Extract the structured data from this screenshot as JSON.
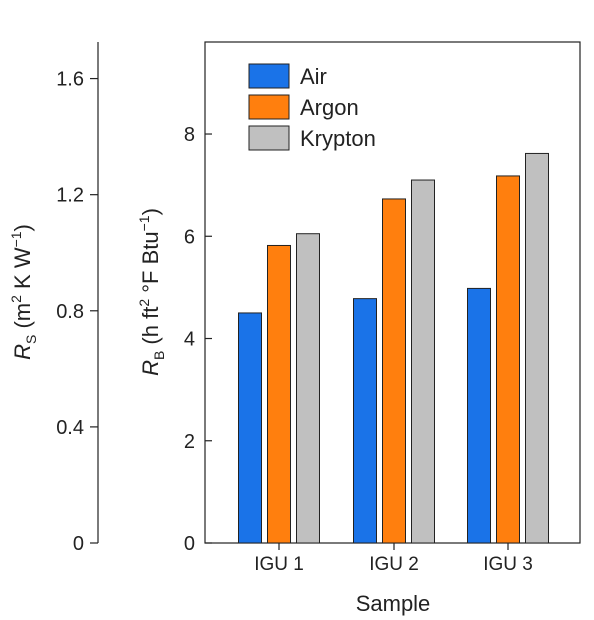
{
  "chart_data": {
    "type": "bar",
    "xlabel": "Sample",
    "categories": [
      "IGU 1",
      "IGU 2",
      "IGU 3"
    ],
    "series": [
      {
        "name": "Air",
        "color": "#1a73e8",
        "values": [
          4.5,
          4.78,
          4.98
        ]
      },
      {
        "name": "Argon",
        "color": "#ff7f0e",
        "values": [
          5.82,
          6.73,
          7.18
        ]
      },
      {
        "name": "Krypton",
        "color": "#c0c0c0",
        "values": [
          6.05,
          7.1,
          7.62
        ]
      }
    ],
    "primary_axis": {
      "ylim": [
        0,
        9.8
      ],
      "ticks": [
        "0",
        "2",
        "4",
        "6",
        "8"
      ],
      "tick_values": [
        0,
        2,
        4,
        6,
        8
      ],
      "label_var": "R",
      "label_sub": "B",
      "label_units": "(h ft",
      "label_sup1": "2",
      "label_mid": " °F Btu",
      "label_sup2": "−1",
      "label_close": ")"
    },
    "secondary_axis": {
      "ylim": [
        0,
        1.726
      ],
      "ticks": [
        "0",
        "0.4",
        "0.8",
        "1.2",
        "1.6"
      ],
      "tick_values": [
        0,
        0.4,
        0.8,
        1.2,
        1.6
      ],
      "label_var": "R",
      "label_sub": "S",
      "label_units": "(m",
      "label_sup1": "2",
      "label_mid": " K W",
      "label_sup2": "−1",
      "label_close": ")"
    },
    "legend_position": "top-left",
    "grid": false
  }
}
